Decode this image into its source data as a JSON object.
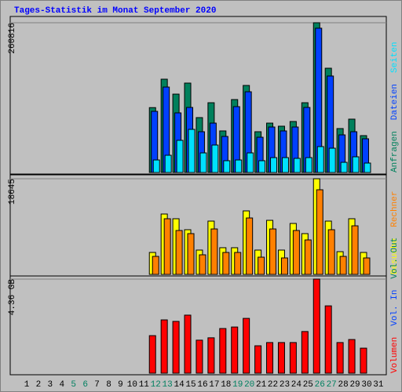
{
  "chart_data": [
    {
      "type": "bar",
      "title": "Tages-Statistik im Monat September 2020",
      "ylim": [
        0,
        260816
      ],
      "yticks": [
        260816
      ],
      "series": [
        {
          "name": "Anfragen",
          "color": "#00805c",
          "values": [
            0,
            0,
            0,
            0,
            0,
            0,
            0,
            0,
            0,
            0,
            0,
            113000,
            162500,
            136500,
            155700,
            95600,
            121500,
            72400,
            127000,
            151600,
            71000,
            86000,
            80600,
            88800,
            121500,
            260816,
            181600,
            76500,
            92900,
            64200,
            0
          ]
        },
        {
          "name": "Dateien",
          "color": "#0040ff",
          "values": [
            0,
            0,
            0,
            0,
            0,
            0,
            0,
            0,
            0,
            0,
            0,
            106500,
            148800,
            103800,
            113300,
            71000,
            86000,
            62800,
            114700,
            140600,
            61400,
            79200,
            72400,
            79200,
            113300,
            251300,
            168000,
            65500,
            71000,
            58700,
            0
          ]
        },
        {
          "name": "Seiten",
          "color": "#00e0ff",
          "values": [
            0,
            0,
            0,
            0,
            0,
            0,
            0,
            0,
            0,
            0,
            0,
            21800,
            30000,
            56000,
            75100,
            34100,
            47800,
            20500,
            21800,
            34100,
            20500,
            25900,
            25900,
            24600,
            25900,
            45100,
            42300,
            17700,
            27300,
            16400,
            0
          ]
        }
      ]
    },
    {
      "type": "bar",
      "ylim": [
        0,
        18645
      ],
      "yticks": [
        18645
      ],
      "series": [
        {
          "name": "Besuche",
          "color": "#ffff00",
          "values": [
            0,
            0,
            0,
            0,
            0,
            0,
            0,
            0,
            0,
            0,
            0,
            4280,
            11770,
            10850,
            8710,
            4740,
            10390,
            5200,
            5200,
            12380,
            4740,
            10540,
            4740,
            9930,
            7950,
            18645,
            10390,
            4430,
            10850,
            4280,
            0
          ]
        },
        {
          "name": "Rechner",
          "color": "#ff8000",
          "values": [
            0,
            0,
            0,
            0,
            0,
            0,
            0,
            0,
            0,
            0,
            0,
            3510,
            10850,
            8560,
            7950,
            3820,
            8860,
            4280,
            4280,
            11000,
            3360,
            8860,
            3210,
            8560,
            6720,
            16500,
            8710,
            3510,
            9470,
            3210,
            0
          ]
        }
      ]
    },
    {
      "type": "bar",
      "ylim": [
        0,
        4.36
      ],
      "yticks": [
        {
          "value": 4.36,
          "label": "4.36 GB"
        }
      ],
      "categories": [
        "1",
        "2",
        "3",
        "4",
        "5",
        "6",
        "7",
        "8",
        "9",
        "10",
        "11",
        "12",
        "13",
        "14",
        "15",
        "16",
        "17",
        "18",
        "19",
        "20",
        "21",
        "22",
        "23",
        "24",
        "25",
        "26",
        "27",
        "28",
        "29",
        "30",
        "31"
      ],
      "category_colors": [
        "#000000",
        "#000000",
        "#000000",
        "#000000",
        "#008060",
        "#008060",
        "#000000",
        "#000000",
        "#000000",
        "#000000",
        "#000000",
        "#008060",
        "#008060",
        "#000000",
        "#000000",
        "#000000",
        "#000000",
        "#000000",
        "#008060",
        "#008060",
        "#000000",
        "#000000",
        "#000000",
        "#000000",
        "#000000",
        "#008060",
        "#008060",
        "#000000",
        "#000000",
        "#000000",
        "#000000"
      ],
      "series": [
        {
          "name": "Volumen",
          "color": "#ff0000",
          "values": [
            0,
            0,
            0,
            0,
            0,
            0,
            0,
            0,
            0,
            0,
            0,
            1.74,
            2.47,
            2.4,
            2.69,
            1.53,
            1.64,
            2.07,
            2.14,
            2.54,
            1.27,
            1.42,
            1.42,
            1.42,
            1.93,
            4.36,
            3.12,
            1.42,
            1.56,
            1.16,
            0
          ]
        },
        {
          "name": "Vol. In",
          "color": "#0040ff",
          "values": [
            0,
            0,
            0,
            0,
            0,
            0,
            0,
            0,
            0,
            0,
            0,
            0,
            0,
            0,
            0,
            0,
            0,
            0,
            0,
            0,
            0,
            0,
            0,
            0,
            0,
            0,
            0,
            0,
            0,
            0,
            0
          ]
        },
        {
          "name": "Vol. Out",
          "color": "#008060",
          "values": [
            0,
            0,
            0,
            0,
            0,
            0,
            0,
            0,
            0,
            0,
            0,
            0,
            0,
            0,
            0,
            0,
            0,
            0,
            0,
            0,
            0,
            0,
            0,
            0,
            0,
            0,
            0,
            0,
            0,
            0,
            0
          ]
        }
      ]
    }
  ]
}
